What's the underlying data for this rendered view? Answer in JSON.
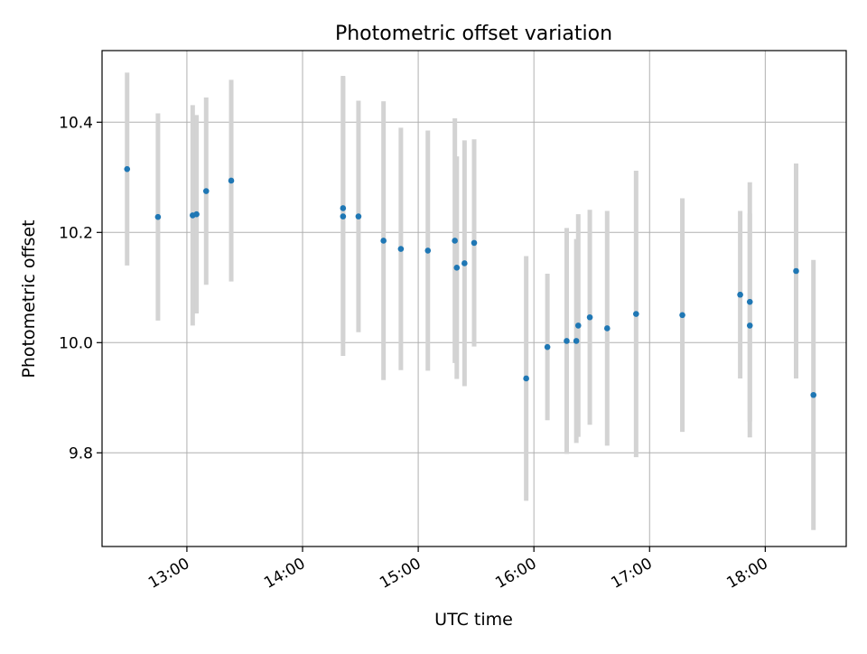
{
  "chart_data": {
    "type": "scatter",
    "title": "Photometric offset variation",
    "xlabel": "UTC time",
    "ylabel": "Photometric offset",
    "x_ticks": [
      "13:00",
      "14:00",
      "15:00",
      "16:00",
      "17:00",
      "18:00"
    ],
    "y_ticks": [
      "9.8",
      "10.0",
      "10.2",
      "10.4"
    ],
    "xlim": [
      "12:16",
      "18:42"
    ],
    "ylim": [
      9.63,
      10.53
    ],
    "grid": true,
    "colors": {
      "point": "#1f77b4",
      "errorbar": "#d3d3d3",
      "grid": "#b0b0b0",
      "axes": "#000000"
    },
    "series": [
      {
        "points": [
          {
            "x": "12:29",
            "y": 10.315,
            "err": 0.175
          },
          {
            "x": "12:45",
            "y": 10.228,
            "err": 0.188
          },
          {
            "x": "13:03",
            "y": 10.231,
            "err": 0.2
          },
          {
            "x": "13:05",
            "y": 10.233,
            "err": 0.18
          },
          {
            "x": "13:10",
            "y": 10.275,
            "err": 0.17
          },
          {
            "x": "13:23",
            "y": 10.294,
            "err": 0.183
          },
          {
            "x": "14:21",
            "y": 10.244,
            "err": 0.24
          },
          {
            "x": "14:21",
            "y": 10.229,
            "err": 0.253
          },
          {
            "x": "14:29",
            "y": 10.229,
            "err": 0.21
          },
          {
            "x": "14:42",
            "y": 10.185,
            "err": 0.253
          },
          {
            "x": "14:51",
            "y": 10.17,
            "err": 0.22
          },
          {
            "x": "15:05",
            "y": 10.167,
            "err": 0.218
          },
          {
            "x": "15:19",
            "y": 10.185,
            "err": 0.222
          },
          {
            "x": "15:20",
            "y": 10.136,
            "err": 0.202
          },
          {
            "x": "15:24",
            "y": 10.144,
            "err": 0.223
          },
          {
            "x": "15:29",
            "y": 10.181,
            "err": 0.188
          },
          {
            "x": "15:56",
            "y": 9.935,
            "err": 0.222
          },
          {
            "x": "16:07",
            "y": 9.992,
            "err": 0.133
          },
          {
            "x": "16:17",
            "y": 10.003,
            "err": 0.205
          },
          {
            "x": "16:22",
            "y": 10.003,
            "err": 0.185
          },
          {
            "x": "16:23",
            "y": 10.031,
            "err": 0.202
          },
          {
            "x": "16:29",
            "y": 10.046,
            "err": 0.195
          },
          {
            "x": "16:38",
            "y": 10.026,
            "err": 0.213
          },
          {
            "x": "16:53",
            "y": 10.052,
            "err": 0.26
          },
          {
            "x": "17:17",
            "y": 10.05,
            "err": 0.212
          },
          {
            "x": "17:47",
            "y": 10.087,
            "err": 0.152
          },
          {
            "x": "17:52",
            "y": 10.074,
            "err": 0.217
          },
          {
            "x": "17:52",
            "y": 10.031,
            "err": 0.203
          },
          {
            "x": "18:16",
            "y": 10.13,
            "err": 0.195
          },
          {
            "x": "18:25",
            "y": 9.905,
            "err": 0.245
          }
        ]
      }
    ]
  }
}
